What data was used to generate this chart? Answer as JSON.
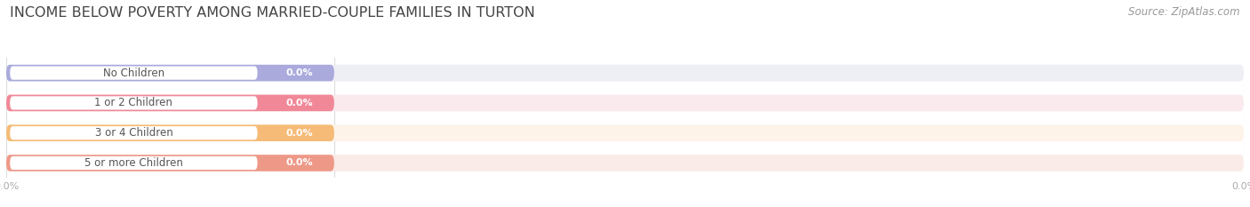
{
  "title": "INCOME BELOW POVERTY AMONG MARRIED-COUPLE FAMILIES IN TURTON",
  "source": "Source: ZipAtlas.com",
  "categories": [
    "No Children",
    "1 or 2 Children",
    "3 or 4 Children",
    "5 or more Children"
  ],
  "values": [
    0.0,
    0.0,
    0.0,
    0.0
  ],
  "bar_colors": [
    "#aaaadd",
    "#f08898",
    "#f5bb77",
    "#ee9988"
  ],
  "bar_bg_colors": [
    "#eeeef5",
    "#faeaed",
    "#fdf3e8",
    "#faeae8"
  ],
  "value_label_color": "#ffffff",
  "cat_label_color": "#555555",
  "bg_color": "#ffffff",
  "title_color": "#444444",
  "title_fontsize": 11.5,
  "source_fontsize": 8.5,
  "source_color": "#999999",
  "grid_color": "#dddddd",
  "tick_color": "#aaaaaa",
  "tick_fontsize": 8
}
